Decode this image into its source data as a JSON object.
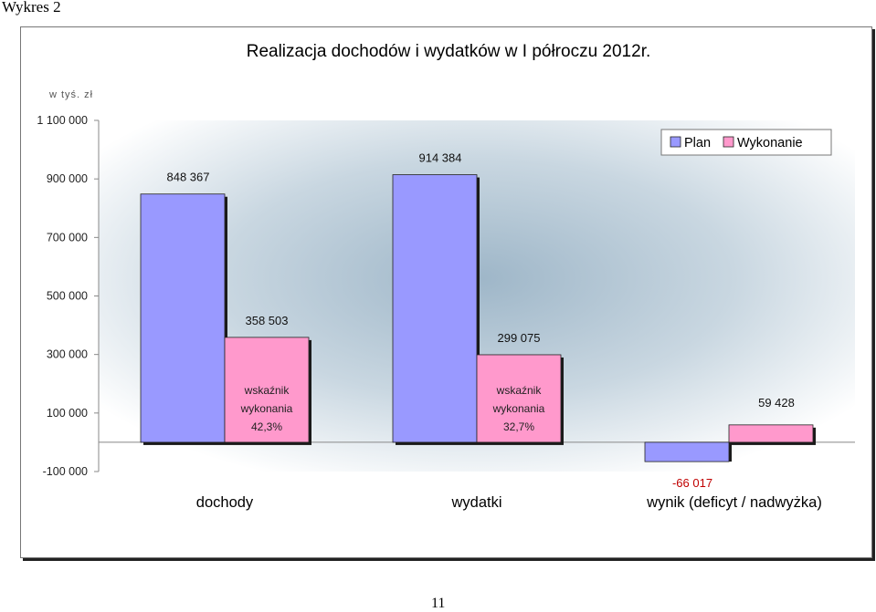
{
  "page": {
    "heading": "Wykres  2",
    "page_number": "11"
  },
  "chart_data": {
    "type": "bar",
    "title": "Realizacja dochodów i wydatków w I półroczu 2012r.",
    "ylabel": "w tyś. zł",
    "xlabel": "",
    "ylim": [
      -100000,
      1100000
    ],
    "yticks": [
      -100000,
      100000,
      300000,
      500000,
      700000,
      900000,
      1100000
    ],
    "ytick_labels": [
      "-100 000",
      "100 000",
      "300 000",
      "500 000",
      "700 000",
      "900 000",
      "1 100 000"
    ],
    "categories": [
      "dochody",
      "wydatki",
      "wynik (deficyt / nadwyżka)"
    ],
    "series": [
      {
        "name": "Plan",
        "color": "#9999ff",
        "values": [
          848367,
          914384,
          -66017
        ],
        "labels": [
          "848 367",
          "914 384",
          "-66 017"
        ]
      },
      {
        "name": "Wykonanie",
        "color": "#ff99cc",
        "values": [
          358503,
          299075,
          59428
        ],
        "labels": [
          "358 503",
          "299 075",
          "59 428"
        ]
      }
    ],
    "annotations": [
      {
        "category": "dochody",
        "lines": [
          "wskaźnik",
          "wykonania",
          "42,3%"
        ]
      },
      {
        "category": "wydatki",
        "lines": [
          "wskaźnik",
          "wykonania",
          "32,7%"
        ]
      }
    ],
    "legend": {
      "position": "top-right"
    },
    "grid": false
  }
}
